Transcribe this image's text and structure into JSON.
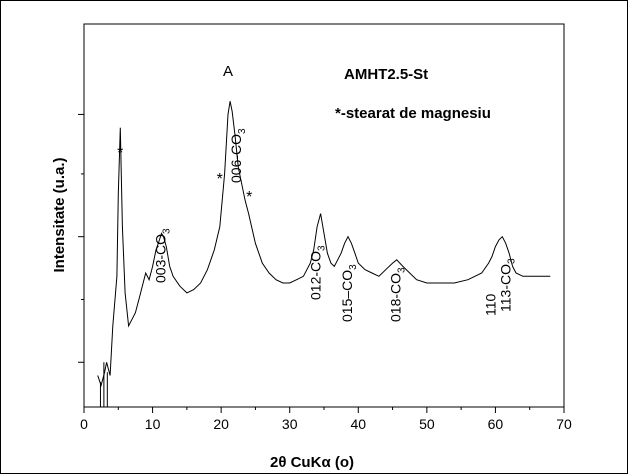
{
  "chart_data": {
    "type": "line",
    "title": "",
    "xlabel_parts": [
      "2θ CuK",
      "α",
      " (o)"
    ],
    "ylabel": "Intensitate (u.a.)",
    "xlim": [
      0,
      70
    ],
    "x_ticks": [
      "0",
      "10",
      "20",
      "30",
      "40",
      "50",
      "60",
      "70"
    ],
    "y_ticks": [],
    "legend": {
      "sample": "AMHT2.5-St",
      "note": "*-stearat de magnesiu"
    },
    "peak_labels": [
      {
        "id": "003",
        "base": "003-CO",
        "sub": "3",
        "x": 11.3
      },
      {
        "id": "006",
        "base": "006-CO",
        "sub": "3",
        "x": 22.3
      },
      {
        "id": "012",
        "base": "012-CO",
        "sub": "3",
        "x": 33.9
      },
      {
        "id": "015",
        "base": "015–CO",
        "sub": "3",
        "x": 38.5
      },
      {
        "id": "018",
        "base": "018-CO",
        "sub": "3",
        "x": 45.6
      },
      {
        "id": "110",
        "base": "110",
        "sub": "",
        "x": 59.4
      },
      {
        "id": "113",
        "base": "113-CO",
        "sub": "3",
        "x": 61.6
      }
    ],
    "symbols": [
      {
        "id": "star1",
        "text": "*",
        "x": 5.3
      },
      {
        "id": "star2",
        "text": "*",
        "x": 19.8
      },
      {
        "id": "star3",
        "text": "*",
        "x": 24.1
      },
      {
        "id": "phaseA",
        "text": "A",
        "x": 21.0
      }
    ],
    "series": [
      {
        "x": [
          2,
          2.5,
          3,
          3.3,
          3.8,
          4.2,
          4.8,
          5.0,
          5.3,
          5.6,
          6.0,
          6.5,
          7.0,
          7.5,
          8.0,
          8.5,
          9.0,
          9.5,
          10.0,
          10.5,
          11.0,
          11.3,
          11.6,
          12.0,
          12.5,
          13.0,
          14.0,
          15.0,
          16.0,
          17.0,
          18.0,
          19.0,
          19.8,
          20.5,
          21.0,
          21.3,
          21.6,
          22.0,
          22.5,
          23.0,
          23.5,
          24.0,
          25.0,
          26.0,
          27.0,
          28.0,
          29.0,
          30.0,
          31.0,
          32.0,
          33.0,
          33.5,
          34.0,
          34.5,
          35.0,
          35.5,
          36.0,
          36.5,
          37.0,
          37.5,
          38.0,
          38.5,
          39.0,
          39.5,
          40.0,
          41.0,
          42.0,
          43.0,
          44.0,
          45.0,
          45.6,
          46.5,
          47.5,
          48.5,
          50.0,
          52.0,
          54.0,
          56.0,
          57.0,
          58.0,
          59.0,
          59.5,
          60.0,
          60.5,
          61.0,
          61.5,
          62.0,
          62.5,
          63.0,
          64.0,
          65.0,
          66.0,
          67.0,
          68.0
        ],
        "y": [
          0.5,
          0.2,
          0.6,
          0.9,
          0.5,
          2.0,
          3.5,
          6.0,
          8.0,
          5.0,
          3.0,
          2.0,
          2.2,
          2.4,
          2.8,
          3.2,
          3.6,
          3.4,
          3.8,
          4.3,
          4.6,
          4.8,
          4.7,
          4.4,
          3.8,
          3.5,
          3.2,
          3.0,
          3.1,
          3.3,
          3.7,
          4.3,
          5.0,
          6.6,
          8.4,
          8.8,
          8.5,
          7.8,
          6.8,
          6.3,
          5.8,
          5.4,
          4.5,
          3.9,
          3.6,
          3.4,
          3.3,
          3.3,
          3.4,
          3.5,
          3.9,
          4.3,
          5.0,
          5.4,
          4.8,
          4.2,
          3.9,
          3.8,
          4.0,
          4.2,
          4.5,
          4.7,
          4.5,
          4.2,
          3.9,
          3.7,
          3.6,
          3.5,
          3.7,
          3.9,
          4.0,
          3.8,
          3.6,
          3.4,
          3.3,
          3.3,
          3.3,
          3.4,
          3.5,
          3.6,
          3.9,
          4.1,
          4.4,
          4.6,
          4.7,
          4.5,
          4.2,
          3.8,
          3.6,
          3.5,
          3.5,
          3.5,
          3.5,
          3.5
        ]
      }
    ]
  }
}
